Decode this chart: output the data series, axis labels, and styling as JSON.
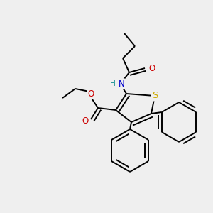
{
  "bg_color": "#efefef",
  "bond_color": "#000000",
  "bond_width": 1.4,
  "atom_colors": {
    "S": "#ccaa00",
    "O": "#cc0000",
    "N": "#0000cc",
    "H": "#008888"
  },
  "font_size": 8.5
}
